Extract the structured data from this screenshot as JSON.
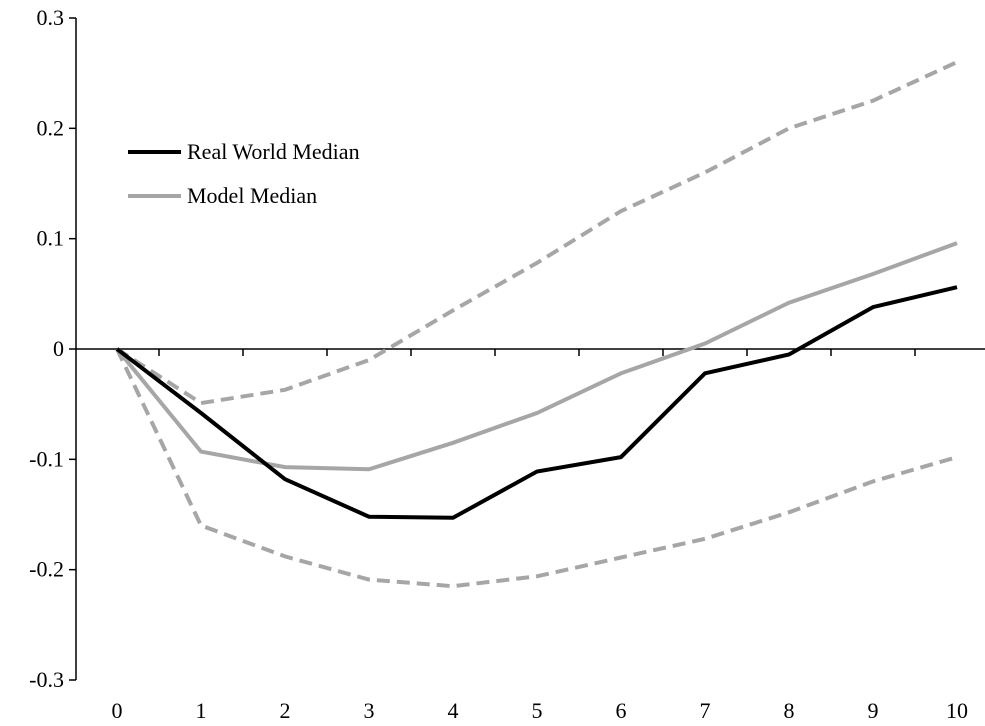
{
  "chart_data": {
    "type": "line",
    "x": [
      0,
      1,
      2,
      3,
      4,
      5,
      6,
      7,
      8,
      9,
      10
    ],
    "ylim": [
      -0.3,
      0.3
    ],
    "yticks": [
      -0.3,
      -0.2,
      -0.1,
      0,
      0.1,
      0.2,
      0.3
    ],
    "ytick_labels": [
      "-0.3",
      "-0.2",
      "-0.1",
      "0",
      "0.1",
      "0.2",
      "0.3"
    ],
    "xtick_labels": [
      "0",
      "1",
      "2",
      "3",
      "4",
      "5",
      "6",
      "7",
      "8",
      "9",
      "10"
    ],
    "title": "",
    "xlabel": "",
    "ylabel": "",
    "legend_position": "upper-left",
    "series": [
      {
        "key": "real_world_median",
        "name": "Real World Median",
        "color": "#000000",
        "style": "solid",
        "in_legend": true,
        "values": [
          0,
          -0.058,
          -0.118,
          -0.152,
          -0.153,
          -0.111,
          -0.098,
          -0.022,
          -0.005,
          0.038,
          0.056
        ]
      },
      {
        "key": "model_median",
        "name": "Model Median",
        "color": "#a6a6a6",
        "style": "solid",
        "in_legend": true,
        "values": [
          0,
          -0.093,
          -0.107,
          -0.109,
          -0.085,
          -0.058,
          -0.022,
          0.005,
          0.042,
          0.068,
          0.096
        ]
      },
      {
        "key": "upper_band",
        "color": "#a6a6a6",
        "style": "dashed",
        "in_legend": false,
        "values": [
          0,
          -0.049,
          -0.037,
          -0.01,
          0.035,
          0.078,
          0.125,
          0.16,
          0.2,
          0.225,
          0.26
        ]
      },
      {
        "key": "lower_band",
        "color": "#a6a6a6",
        "style": "dashed",
        "in_legend": false,
        "values": [
          0,
          -0.16,
          -0.188,
          -0.209,
          -0.215,
          -0.206,
          -0.189,
          -0.172,
          -0.148,
          -0.12,
          -0.098
        ]
      }
    ]
  }
}
